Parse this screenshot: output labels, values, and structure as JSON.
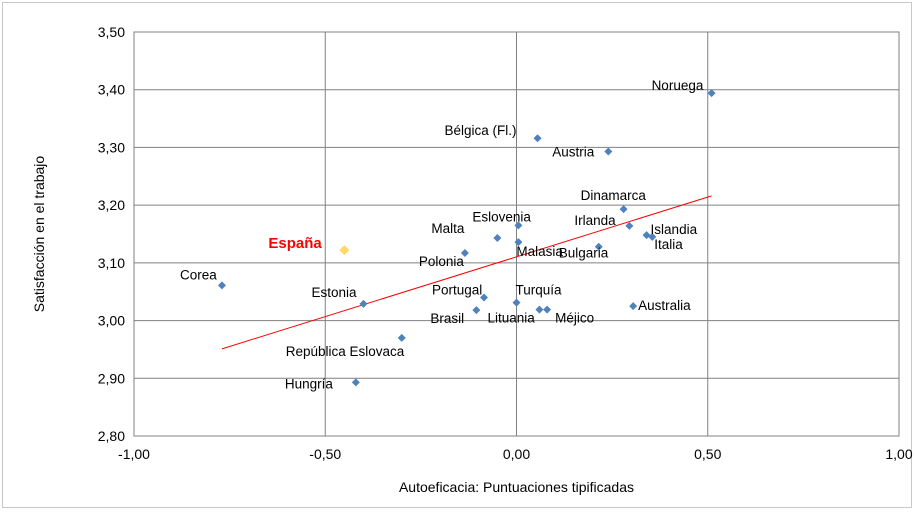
{
  "chart_data": {
    "type": "scatter",
    "xlabel": "Autoeficacia: Puntuaciones tipificadas",
    "ylabel": "Satisfacción en el trabajo",
    "xlim": [
      -1.0,
      1.0
    ],
    "ylim": [
      2.8,
      3.5
    ],
    "x_ticks": [
      "-1,00",
      "-0,50",
      "0,00",
      "0,50",
      "1,00"
    ],
    "y_ticks": [
      "2,80",
      "2,90",
      "3,00",
      "3,10",
      "3,20",
      "3,30",
      "3,40",
      "3,50"
    ],
    "grid": true,
    "legend": "none",
    "colors": {
      "point": "#4f81bd",
      "highlight": "#ffd966",
      "highlight_label": "#ff0000",
      "trendline": "#ff0000",
      "grid": "#808080"
    },
    "points": [
      {
        "label": "Noruega",
        "x": 0.51,
        "y": 3.394
      },
      {
        "label": "Bélgica (Fl.)",
        "x": 0.055,
        "y": 3.316
      },
      {
        "label": "Austria",
        "x": 0.24,
        "y": 3.293
      },
      {
        "label": "Dinamarca",
        "x": 0.28,
        "y": 3.193
      },
      {
        "label": "Eslovenia",
        "x": 0.005,
        "y": 3.165
      },
      {
        "label": "Irlanda",
        "x": 0.295,
        "y": 3.164
      },
      {
        "label": "Islandia",
        "x": 0.34,
        "y": 3.148
      },
      {
        "label": "Italia",
        "x": 0.355,
        "y": 3.145
      },
      {
        "label": "Malta",
        "x": -0.05,
        "y": 3.143
      },
      {
        "label": "Malasia",
        "x": 0.005,
        "y": 3.136
      },
      {
        "label": "Bulgaria",
        "x": 0.215,
        "y": 3.128
      },
      {
        "label": "España",
        "x": -0.45,
        "y": 3.122,
        "highlight": true
      },
      {
        "label": "Polonia",
        "x": -0.135,
        "y": 3.117
      },
      {
        "label": "Corea",
        "x": -0.77,
        "y": 3.061
      },
      {
        "label": "Portugal",
        "x": -0.085,
        "y": 3.04
      },
      {
        "label": "Turquía",
        "x": 0.0,
        "y": 3.031
      },
      {
        "label": "Estonia",
        "x": -0.4,
        "y": 3.029
      },
      {
        "label": "Australia",
        "x": 0.305,
        "y": 3.025
      },
      {
        "label": "Lituania",
        "x": 0.06,
        "y": 3.019
      },
      {
        "label": "Méjico",
        "x": 0.08,
        "y": 3.019
      },
      {
        "label": "Brasil",
        "x": -0.105,
        "y": 3.018
      },
      {
        "label": "República Eslovaca",
        "x": -0.3,
        "y": 2.97
      },
      {
        "label": "Hungría",
        "x": -0.42,
        "y": 2.893
      }
    ],
    "trendline": {
      "x": [
        -0.77,
        0.51
      ],
      "y": [
        2.951,
        3.216
      ]
    }
  }
}
